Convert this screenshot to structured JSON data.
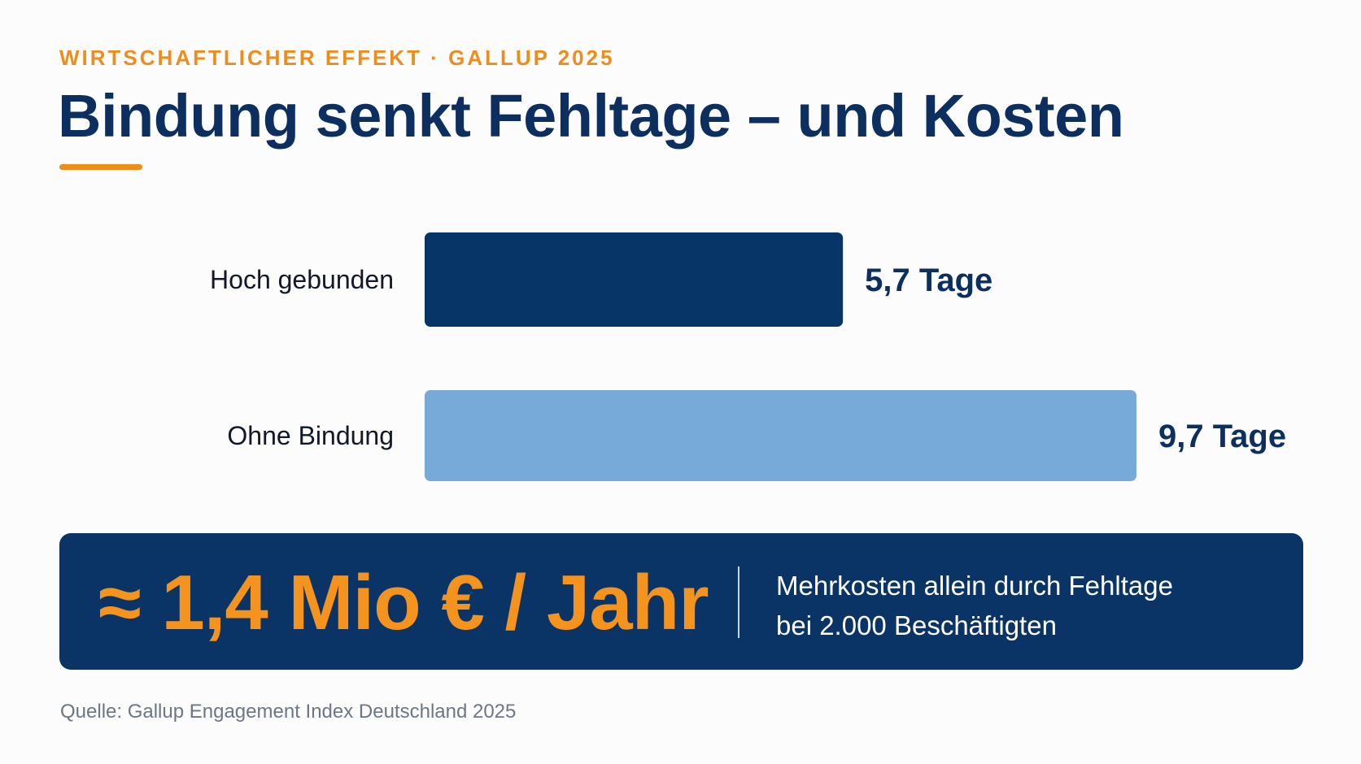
{
  "kicker": "WIRTSCHAFTLICHER EFFEKT · GALLUP 2025",
  "title": "Bindung senkt Fehltage – und Kosten",
  "chart_data": {
    "type": "bar",
    "orientation": "horizontal",
    "unit": "Tage",
    "categories": [
      "Hoch gebunden",
      "Ohne Bindung"
    ],
    "values": [
      5.7,
      9.7
    ],
    "value_labels": [
      "5,7 Tage",
      "9,7 Tage"
    ],
    "colors": [
      "#083567",
      "#78aad9"
    ],
    "xlim": [
      0,
      9.7
    ],
    "grid": false,
    "legend": "none"
  },
  "callout": {
    "headline": "≈ 1,4 Mio € / Jahr",
    "line1": "Mehrkosten allein durch Fehltage",
    "line2": "bei 2.000 Beschäftigten"
  },
  "source": "Quelle: Gallup Engagement Index Deutschland 2025",
  "colors": {
    "accent": "#ee8c1c",
    "navy": "#0b3466",
    "title": "#0c2f5f"
  }
}
